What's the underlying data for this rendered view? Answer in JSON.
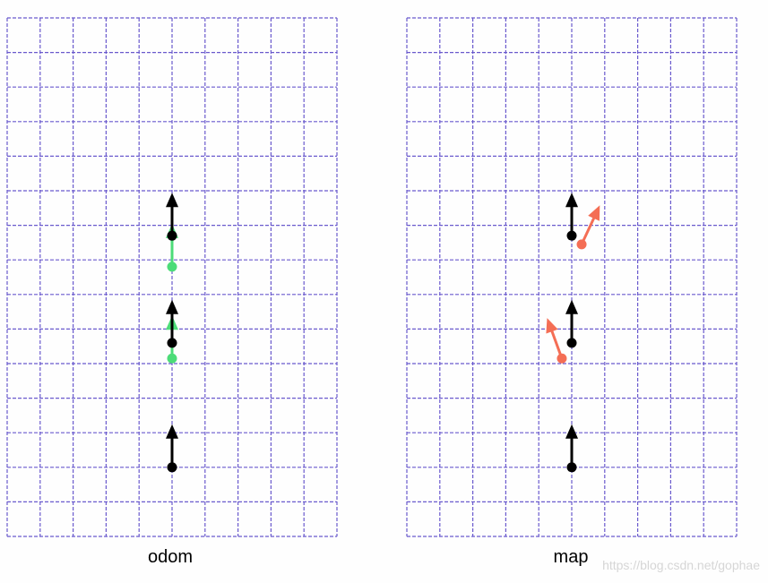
{
  "colors": {
    "background": "#fefefe",
    "grid": "#6a5acd",
    "robot_pose": "#000000",
    "odom_pose": "#4cdc78",
    "map_pose": "#f46e55"
  },
  "panels": [
    {
      "id": "odom",
      "label": "odom",
      "black_poses": [
        {
          "x": 5,
          "y": 2,
          "heading_deg": 0
        },
        {
          "x": 5,
          "y": 5.6,
          "heading_deg": 0
        },
        {
          "x": 5,
          "y": 8.7,
          "heading_deg": 0
        }
      ],
      "colored_poses": [
        {
          "x": 5,
          "y": 5.15,
          "heading_deg": 0
        },
        {
          "x": 5,
          "y": 7.8,
          "heading_deg": 0
        }
      ],
      "colored_color": "odom_pose"
    },
    {
      "id": "map",
      "label": "map",
      "black_poses": [
        {
          "x": 5,
          "y": 2,
          "heading_deg": 0
        },
        {
          "x": 5,
          "y": 5.6,
          "heading_deg": 0
        },
        {
          "x": 5,
          "y": 8.7,
          "heading_deg": 0
        }
      ],
      "colored_poses": [
        {
          "x": 4.7,
          "y": 5.15,
          "heading_deg": -20
        },
        {
          "x": 5.3,
          "y": 8.45,
          "heading_deg": 25
        }
      ],
      "colored_color": "map_pose"
    }
  ],
  "watermark": "https://blog.csdn.net/gophae"
}
